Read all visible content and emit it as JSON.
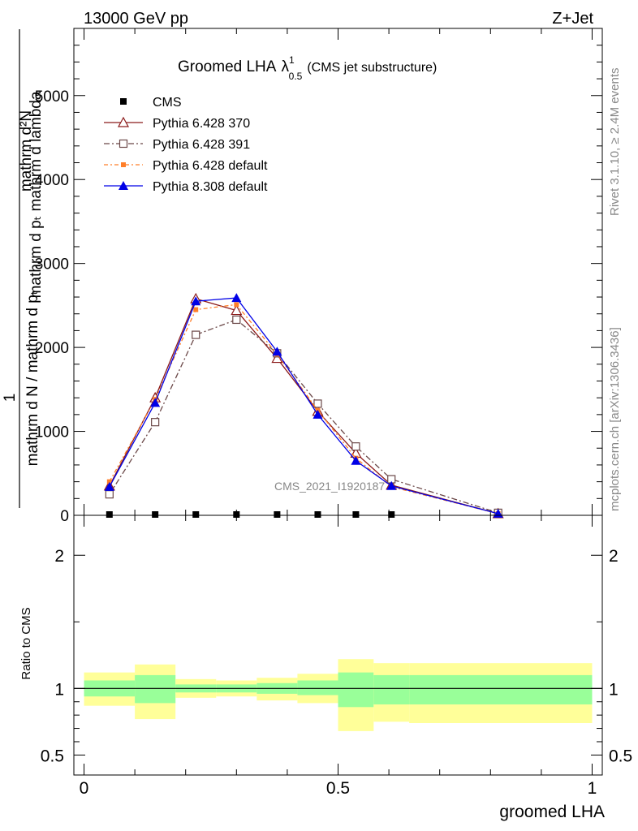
{
  "header": {
    "left": "13000 GeV pp",
    "right": "Z+Jet"
  },
  "side": {
    "rivet": "Rivet 3.1.10, ≥ 2.4M events",
    "mcplots": "mcplots.cern.ch [arXiv:1306.3436]"
  },
  "watermark": "CMS_2021_I1920187",
  "colors": {
    "cms": "#000000",
    "p370": "#8b1a1a",
    "p391": "#6b4848",
    "p6def": "#ff7f2a",
    "p8def": "#0000e6",
    "band_outer": "#ffff99",
    "band_inner": "#99ff99"
  },
  "chart_data": [
    {
      "type": "line",
      "title": "Groomed LHA",
      "title_symbol": "λ",
      "title_sup": "1",
      "title_sub": "0.5",
      "title_suffix": "(CMS jet substructure)",
      "ylabel_top": "mathrm d²N",
      "ylabel_mid": "mathrm d pₜ mathrm d lambda",
      "ylabel_one": "1",
      "ylabel_bottom": "mathrm d N / mathrm d pₜ",
      "ylim": [
        0,
        5800
      ],
      "yticks": [
        0,
        1000,
        2000,
        3000,
        4000,
        5000
      ],
      "yticklabels": [
        "0",
        "1000",
        "2000",
        "3000",
        "4000",
        "5000"
      ],
      "xlim": [
        -0.02,
        1.02
      ],
      "legend_position": "top-left",
      "series": [
        {
          "name": "CMS",
          "key": "cms",
          "x": [
            0.05,
            0.14,
            0.22,
            0.3,
            0.38,
            0.46,
            0.535,
            0.605
          ],
          "y": [
            0,
            0,
            0,
            0,
            0,
            0,
            0,
            0
          ]
        },
        {
          "name": "Pythia 6.428 370",
          "key": "p370",
          "x": [
            0.05,
            0.14,
            0.22,
            0.3,
            0.38,
            0.46,
            0.535,
            0.605,
            0.815
          ],
          "y": [
            350,
            1400,
            2580,
            2440,
            1870,
            1240,
            740,
            360,
            20
          ]
        },
        {
          "name": "Pythia 6.428 391",
          "key": "p391",
          "x": [
            0.05,
            0.14,
            0.22,
            0.3,
            0.38,
            0.46,
            0.535,
            0.605,
            0.815
          ],
          "y": [
            250,
            1110,
            2150,
            2330,
            1930,
            1330,
            820,
            430,
            30
          ]
        },
        {
          "name": "Pythia 6.428 default",
          "key": "p6def",
          "x": [
            0.05,
            0.14,
            0.22,
            0.3,
            0.38,
            0.46,
            0.535,
            0.605,
            0.815
          ],
          "y": [
            400,
            1380,
            2450,
            2510,
            1920,
            1250,
            680,
            340,
            20
          ]
        },
        {
          "name": "Pythia 8.308 default",
          "key": "p8def",
          "x": [
            0.05,
            0.14,
            0.22,
            0.3,
            0.38,
            0.46,
            0.535,
            0.605,
            0.815
          ],
          "y": [
            340,
            1340,
            2550,
            2590,
            1950,
            1200,
            650,
            350,
            20
          ]
        }
      ]
    },
    {
      "type": "area",
      "ylabel": "Ratio to CMS",
      "xlabel": "groomed LHA",
      "ylim": [
        0.35,
        2.3
      ],
      "yticks": [
        0.5,
        1,
        2
      ],
      "yticklabels": [
        "0.5",
        "1",
        "2"
      ],
      "xlim": [
        -0.02,
        1.02
      ],
      "xticks": [
        0,
        0.5,
        1
      ],
      "xticklabels": [
        "0",
        "0.5",
        "1"
      ],
      "reference": 1,
      "bins": [
        {
          "lo": 0.0,
          "hi": 0.1,
          "in_lo": 0.94,
          "in_hi": 1.06,
          "out_lo": 0.87,
          "out_hi": 1.12
        },
        {
          "lo": 0.1,
          "hi": 0.18,
          "in_lo": 0.89,
          "in_hi": 1.1,
          "out_lo": 0.77,
          "out_hi": 1.18
        },
        {
          "lo": 0.18,
          "hi": 0.26,
          "in_lo": 0.97,
          "in_hi": 1.03,
          "out_lo": 0.93,
          "out_hi": 1.07
        },
        {
          "lo": 0.26,
          "hi": 0.34,
          "in_lo": 0.97,
          "in_hi": 1.03,
          "out_lo": 0.94,
          "out_hi": 1.06
        },
        {
          "lo": 0.34,
          "hi": 0.42,
          "in_lo": 0.96,
          "in_hi": 1.04,
          "out_lo": 0.91,
          "out_hi": 1.08
        },
        {
          "lo": 0.42,
          "hi": 0.5,
          "in_lo": 0.95,
          "in_hi": 1.06,
          "out_lo": 0.89,
          "out_hi": 1.11
        },
        {
          "lo": 0.5,
          "hi": 0.57,
          "in_lo": 0.86,
          "in_hi": 1.12,
          "out_lo": 0.68,
          "out_hi": 1.22
        },
        {
          "lo": 0.57,
          "hi": 0.64,
          "in_lo": 0.88,
          "in_hi": 1.1,
          "out_lo": 0.75,
          "out_hi": 1.19
        },
        {
          "lo": 0.64,
          "hi": 1.0,
          "in_lo": 0.88,
          "in_hi": 1.1,
          "out_lo": 0.74,
          "out_hi": 1.19
        }
      ]
    }
  ]
}
